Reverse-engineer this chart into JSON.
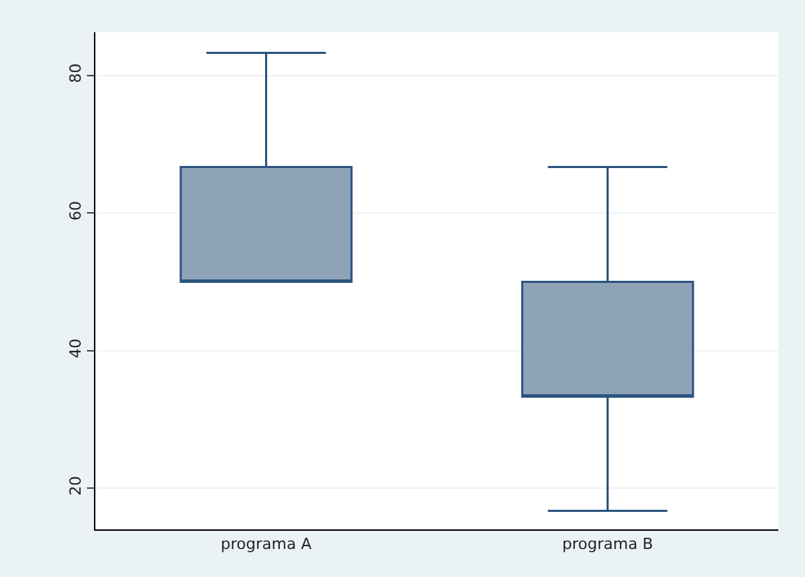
{
  "chart_data": {
    "type": "box",
    "categories": [
      "programa A",
      "programa B"
    ],
    "boxes": [
      {
        "low": 50,
        "q1": 50,
        "median": 50,
        "q3": 66.7,
        "high": 83.3
      },
      {
        "low": 16.7,
        "q1": 33.3,
        "median": 33.3,
        "q3": 50,
        "high": 66.7
      }
    ],
    "color": "#8ea3b8",
    "ylim": [
      14,
      86.3
    ],
    "yticks": [
      20,
      40,
      60,
      80
    ],
    "grid": "y"
  }
}
